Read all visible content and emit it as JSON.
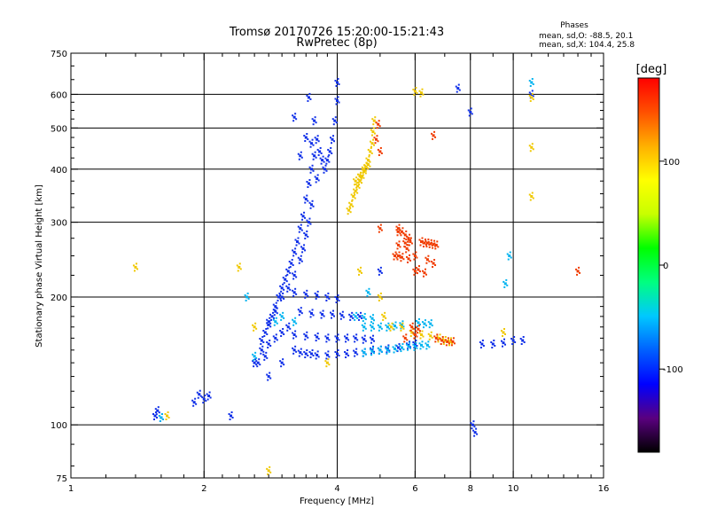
{
  "chart_data": {
    "type": "scatter",
    "title": "Tromsø 20170726 15:20:00-15:21:43",
    "subtitle": "RwPretec (8p)",
    "phases_box": {
      "heading": "Phases",
      "line1": "mean, sd,O: -88.5, 20.1",
      "line2": "mean, sd,X: 104.4, 25.8"
    },
    "xlabel": "Frequency [MHz]",
    "ylabel": "Stationary phase Virtual Height [km]",
    "x_scale": "log",
    "y_scale": "log",
    "xlim": [
      1,
      16
    ],
    "ylim": [
      75,
      750
    ],
    "x_ticks": [
      {
        "value": 1,
        "label": "1"
      },
      {
        "value": 2,
        "label": "2"
      },
      {
        "value": 4,
        "label": "4"
      },
      {
        "value": 6,
        "label": "6"
      },
      {
        "value": 8,
        "label": "8"
      },
      {
        "value": 10,
        "label": "10"
      },
      {
        "value": 16,
        "label": "16"
      }
    ],
    "x_gridlines": [
      2,
      4,
      6,
      8,
      10
    ],
    "y_ticks": [
      {
        "value": 75,
        "label": "75"
      },
      {
        "value": 100,
        "label": "100"
      },
      {
        "value": 200,
        "label": "200"
      },
      {
        "value": 300,
        "label": "300"
      },
      {
        "value": 400,
        "label": "400"
      },
      {
        "value": 500,
        "label": "500"
      },
      {
        "value": 600,
        "label": "600"
      },
      {
        "value": 750,
        "label": "750"
      }
    ],
    "y_gridlines": [
      100,
      200,
      300,
      400,
      500,
      600
    ],
    "colorbar": {
      "label": "[deg]",
      "range": [
        -180,
        180
      ],
      "ticks": [
        {
          "value": 100,
          "label": "100"
        },
        {
          "value": 0,
          "label": "0"
        },
        {
          "value": -100,
          "label": "-100"
        }
      ],
      "colors": [
        "#000000",
        "#5a0080",
        "#0000ff",
        "#0060ff",
        "#00c8ff",
        "#00ff80",
        "#00ff00",
        "#c8ff00",
        "#ffff00",
        "#ffb000",
        "#ff5000",
        "#ff0000"
      ]
    },
    "series": [
      {
        "points": [
          [
            3.45,
            590
          ],
          [
            3.55,
            520
          ],
          [
            3.6,
            470
          ],
          [
            3.65,
            440
          ],
          [
            3.7,
            420
          ],
          [
            3.75,
            400
          ],
          [
            3.8,
            420
          ],
          [
            3.85,
            440
          ],
          [
            3.9,
            470
          ],
          [
            3.95,
            520
          ],
          [
            4.0,
            580
          ],
          [
            4.0,
            640
          ],
          [
            3.5,
            400
          ],
          [
            3.45,
            370
          ],
          [
            3.4,
            340
          ],
          [
            3.35,
            310
          ],
          [
            3.3,
            290
          ],
          [
            3.25,
            270
          ],
          [
            3.2,
            255
          ],
          [
            3.15,
            240
          ],
          [
            3.1,
            230
          ],
          [
            3.05,
            220
          ],
          [
            3.0,
            210
          ],
          [
            2.95,
            200
          ],
          [
            2.9,
            190
          ],
          [
            2.85,
            180
          ],
          [
            2.8,
            172
          ],
          [
            2.75,
            165
          ],
          [
            2.7,
            158
          ],
          [
            3.5,
            460
          ],
          [
            3.55,
            430
          ],
          [
            3.6,
            380
          ],
          [
            3.5,
            330
          ],
          [
            3.45,
            300
          ],
          [
            3.4,
            280
          ],
          [
            3.35,
            260
          ],
          [
            3.3,
            245
          ],
          [
            3.2,
            225
          ],
          [
            3.1,
            210
          ],
          [
            3.0,
            200
          ],
          [
            2.9,
            185
          ],
          [
            2.8,
            175
          ],
          [
            2.65,
            140
          ],
          [
            2.7,
            150
          ],
          [
            2.75,
            145
          ],
          [
            2.8,
            155
          ],
          [
            2.9,
            160
          ],
          [
            3.0,
            165
          ],
          [
            3.1,
            170
          ],
          [
            3.2,
            150
          ],
          [
            3.3,
            148
          ],
          [
            3.4,
            147
          ],
          [
            3.5,
            147
          ],
          [
            3.6,
            146
          ],
          [
            3.8,
            146
          ],
          [
            4.0,
            147
          ],
          [
            4.2,
            147
          ],
          [
            4.4,
            148
          ],
          [
            4.6,
            148
          ],
          [
            4.8,
            150
          ],
          [
            5.0,
            150
          ],
          [
            5.2,
            151
          ],
          [
            5.5,
            152
          ],
          [
            5.8,
            154
          ],
          [
            6.0,
            155
          ],
          [
            3.2,
            163
          ],
          [
            3.4,
            162
          ],
          [
            3.6,
            161
          ],
          [
            3.8,
            160
          ],
          [
            4.0,
            160
          ],
          [
            4.2,
            160
          ],
          [
            4.4,
            160
          ],
          [
            4.6,
            159
          ],
          [
            4.8,
            159
          ],
          [
            3.3,
            185
          ],
          [
            3.5,
            183
          ],
          [
            3.7,
            182
          ],
          [
            3.9,
            182
          ],
          [
            4.1,
            181
          ],
          [
            4.3,
            180
          ],
          [
            4.5,
            180
          ],
          [
            3.2,
            205
          ],
          [
            3.4,
            203
          ],
          [
            3.6,
            202
          ],
          [
            3.8,
            200
          ],
          [
            4.0,
            198
          ],
          [
            1.55,
            105
          ],
          [
            1.57,
            108
          ],
          [
            1.6,
            104
          ],
          [
            1.9,
            113
          ],
          [
            2.0,
            115
          ],
          [
            2.05,
            117
          ],
          [
            1.95,
            118
          ],
          [
            8.5,
            155
          ],
          [
            9.0,
            155
          ],
          [
            9.5,
            156
          ],
          [
            10.0,
            158
          ],
          [
            10.5,
            158
          ],
          [
            7.5,
            620
          ],
          [
            8.0,
            545
          ],
          [
            8.1,
            100
          ],
          [
            8.2,
            96
          ],
          [
            11.0,
            600
          ],
          [
            3.2,
            530
          ],
          [
            3.3,
            430
          ],
          [
            3.4,
            475
          ],
          [
            5.0,
            230
          ],
          [
            2.3,
            105
          ],
          [
            2.6,
            140
          ],
          [
            2.8,
            130
          ],
          [
            3.0,
            140
          ]
        ]
      },
      {
        "points": [
          [
            4.6,
            148
          ],
          [
            4.8,
            149
          ],
          [
            5.0,
            150
          ],
          [
            5.2,
            150
          ],
          [
            5.4,
            151
          ],
          [
            5.6,
            152
          ],
          [
            5.8,
            153
          ],
          [
            6.0,
            153
          ],
          [
            6.2,
            154
          ],
          [
            6.4,
            154
          ],
          [
            4.6,
            170
          ],
          [
            4.8,
            170
          ],
          [
            5.0,
            170
          ],
          [
            5.2,
            170
          ],
          [
            5.4,
            171
          ],
          [
            5.6,
            172
          ],
          [
            4.4,
            180
          ],
          [
            4.6,
            179
          ],
          [
            4.8,
            178
          ],
          [
            6.1,
            174
          ],
          [
            6.3,
            173
          ],
          [
            6.5,
            173
          ],
          [
            3.0,
            180
          ],
          [
            3.2,
            175
          ],
          [
            2.6,
            145
          ],
          [
            2.9,
            175
          ],
          [
            2.5,
            200
          ],
          [
            9.8,
            250
          ],
          [
            9.6,
            215
          ],
          [
            11.0,
            640
          ],
          [
            4.7,
            205
          ],
          [
            1.6,
            104
          ]
        ]
      },
      {
        "points": [
          [
            4.25,
            320
          ],
          [
            4.3,
            330
          ],
          [
            4.35,
            345
          ],
          [
            4.4,
            355
          ],
          [
            4.45,
            365
          ],
          [
            4.5,
            375
          ],
          [
            4.55,
            385
          ],
          [
            4.6,
            395
          ],
          [
            4.65,
            405
          ],
          [
            4.7,
            420
          ],
          [
            4.75,
            440
          ],
          [
            4.8,
            460
          ],
          [
            4.82,
            490
          ],
          [
            4.85,
            520
          ],
          [
            4.4,
            375
          ],
          [
            4.5,
            385
          ],
          [
            4.6,
            400
          ],
          [
            4.7,
            410
          ],
          [
            5.0,
            200
          ],
          [
            5.1,
            180
          ],
          [
            5.3,
            170
          ],
          [
            5.6,
            170
          ],
          [
            5.9,
            165
          ],
          [
            6.2,
            163
          ],
          [
            6.5,
            162
          ],
          [
            6.0,
            610
          ],
          [
            6.2,
            605
          ],
          [
            2.4,
            235
          ],
          [
            2.6,
            170
          ],
          [
            1.65,
            105
          ],
          [
            11.0,
            590
          ],
          [
            11.0,
            450
          ],
          [
            11.0,
            345
          ],
          [
            9.5,
            165
          ],
          [
            6.8,
            160
          ],
          [
            7.0,
            158
          ],
          [
            7.2,
            157
          ],
          [
            1.4,
            235
          ],
          [
            4.5,
            230
          ],
          [
            3.8,
            140
          ],
          [
            2.8,
            78
          ]
        ]
      },
      {
        "points": [
          [
            5.0,
            440
          ],
          [
            4.9,
            470
          ],
          [
            4.95,
            510
          ],
          [
            5.5,
            290
          ],
          [
            5.6,
            285
          ],
          [
            5.7,
            280
          ],
          [
            5.8,
            275
          ],
          [
            5.85,
            270
          ],
          [
            5.75,
            260
          ],
          [
            6.2,
            270
          ],
          [
            6.3,
            268
          ],
          [
            6.4,
            268
          ],
          [
            6.5,
            267
          ],
          [
            6.6,
            266
          ],
          [
            6.7,
            265
          ],
          [
            5.4,
            250
          ],
          [
            5.5,
            250
          ],
          [
            5.6,
            248
          ],
          [
            5.8,
            246
          ],
          [
            6.4,
            245
          ],
          [
            6.6,
            240
          ],
          [
            6.0,
            230
          ],
          [
            6.1,
            232
          ],
          [
            6.3,
            228
          ],
          [
            5.5,
            265
          ],
          [
            5.7,
            268
          ],
          [
            6.0,
            250
          ],
          [
            5.7,
            160
          ],
          [
            6.0,
            163
          ],
          [
            5.9,
            170
          ],
          [
            6.1,
            168
          ],
          [
            6.7,
            160
          ],
          [
            6.9,
            158
          ],
          [
            7.1,
            157
          ],
          [
            7.3,
            157
          ],
          [
            6.6,
            480
          ],
          [
            14.0,
            230
          ],
          [
            5.5,
            285
          ],
          [
            5.0,
            290
          ]
        ]
      }
    ]
  }
}
